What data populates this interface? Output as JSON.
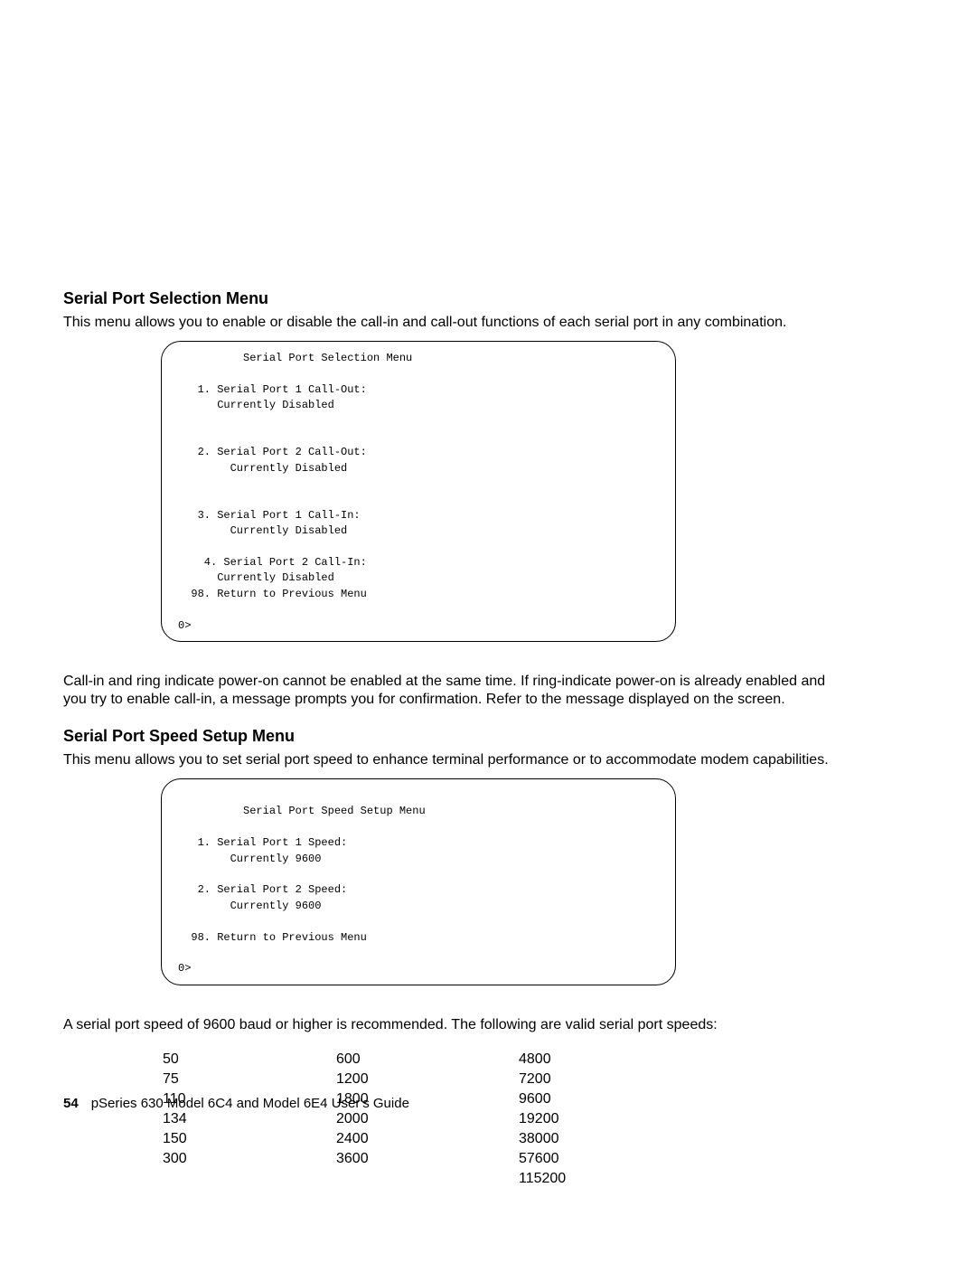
{
  "section1": {
    "heading": "Serial Port Selection Menu",
    "para1": "This menu allows you to enable or disable the call-in and call-out functions of each serial port in any combination.",
    "terminal": "          Serial Port Selection Menu\n\n   1. Serial Port 1 Call-Out:\n      Currently Disabled\n\n\n   2. Serial Port 2 Call-Out:\n        Currently Disabled\n\n\n   3. Serial Port 1 Call-In:\n        Currently Disabled\n\n    4. Serial Port 2 Call-In:\n      Currently Disabled\n  98. Return to Previous Menu\n\n0>",
    "para2": "Call-in and ring indicate power-on cannot be enabled at the same time. If ring-indicate power-on is already enabled and you try to enable call-in, a message prompts you for confirmation. Refer to the message displayed on the screen."
  },
  "section2": {
    "heading": "Serial Port Speed Setup Menu",
    "para1": "This menu allows you to set serial port speed to enhance terminal performance or to accommodate modem capabilities.",
    "terminal": "\n          Serial Port Speed Setup Menu\n\n   1. Serial Port 1 Speed:\n        Currently 9600\n\n   2. Serial Port 2 Speed:\n        Currently 9600\n\n  98. Return to Previous Menu\n\n0>",
    "para2": "A serial port speed of 9600 baud or higher is recommended. The following are valid serial port speeds:",
    "speeds": {
      "col1": [
        "50",
        "75",
        "110",
        "134",
        "150",
        "300",
        ""
      ],
      "col2": [
        "600",
        "1200",
        "1800",
        "2000",
        "2400",
        "3600",
        ""
      ],
      "col3": [
        "4800",
        "7200",
        "9600",
        "19200",
        "38000",
        "57600",
        "115200"
      ]
    }
  },
  "footer": {
    "pagenum": "54",
    "title": "pSeries 630 Model 6C4 and Model 6E4 User's Guide"
  }
}
